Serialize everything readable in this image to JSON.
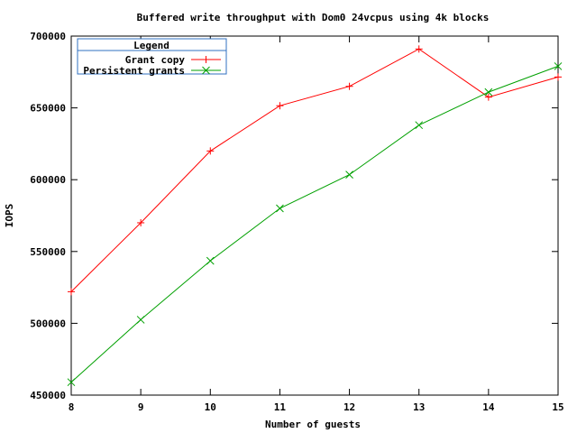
{
  "chart_data": {
    "type": "line",
    "title": "Buffered write throughput with Dom0 24vcpus using 4k blocks",
    "xlabel": "Number of guests",
    "ylabel": "IOPS",
    "x": [
      8,
      9,
      10,
      11,
      12,
      13,
      14,
      15
    ],
    "xlim": [
      8,
      15
    ],
    "ylim": [
      450000,
      700000
    ],
    "xticks": [
      "8",
      "9",
      "10",
      "11",
      "12",
      "13",
      "14",
      "15"
    ],
    "yticks": [
      450000,
      500000,
      550000,
      600000,
      650000,
      700000
    ],
    "ytick_labels": [
      "450000",
      "500000",
      "550000",
      "600000",
      "650000",
      "700000"
    ],
    "grid": false,
    "legend": {
      "title": "Legend",
      "placement": "top-left"
    },
    "series": [
      {
        "name": "Grant copy",
        "color": "#ff0000",
        "marker": "plus",
        "values": [
          522000,
          570000,
          620000,
          651500,
          665000,
          691000,
          657500,
          671500
        ]
      },
      {
        "name": "Persistent grants",
        "color": "#00a000",
        "marker": "cross",
        "values": [
          459000,
          502500,
          543500,
          580000,
          603500,
          638000,
          661000,
          679000
        ]
      }
    ]
  }
}
